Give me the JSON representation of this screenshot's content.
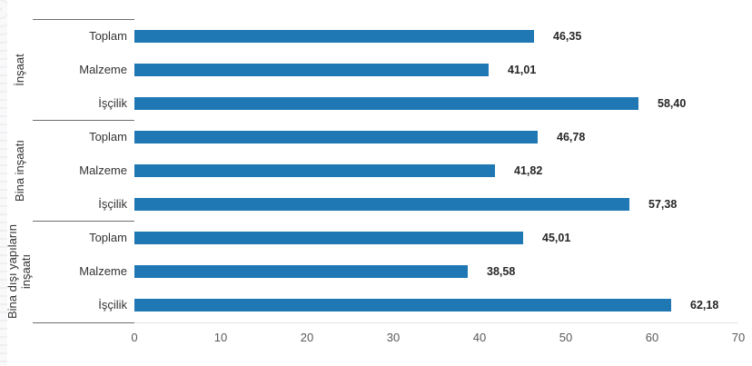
{
  "chart_data": {
    "type": "bar",
    "orientation": "horizontal",
    "title": "",
    "xlabel": "",
    "ylabel": "",
    "xlim": [
      0,
      70
    ],
    "x_ticks": [
      "0",
      "10",
      "20",
      "30",
      "40",
      "50",
      "60",
      "70"
    ],
    "x_tick_values": [
      0,
      10,
      20,
      30,
      40,
      50,
      60,
      70
    ],
    "grid": "off",
    "legend": "none",
    "bar_color": "#1f77b4",
    "value_label_format": "decimal-comma",
    "groups": [
      {
        "label": "İnşaat",
        "rows": [
          {
            "label": "Toplam",
            "value": 46.35,
            "display": "46,35"
          },
          {
            "label": "Malzeme",
            "value": 41.01,
            "display": "41,01"
          },
          {
            "label": "İşçilik",
            "value": 58.4,
            "display": "58,40"
          }
        ]
      },
      {
        "label": "Bina inşaatı",
        "rows": [
          {
            "label": "Toplam",
            "value": 46.78,
            "display": "46,78"
          },
          {
            "label": "Malzeme",
            "value": 41.82,
            "display": "41,82"
          },
          {
            "label": "İşçilik",
            "value": 57.38,
            "display": "57,38"
          }
        ]
      },
      {
        "label": "Bina dışı yapıların inşaatı",
        "rows": [
          {
            "label": "Toplam",
            "value": 45.01,
            "display": "45,01"
          },
          {
            "label": "Malzeme",
            "value": 38.58,
            "display": "38,58"
          },
          {
            "label": "İşçilik",
            "value": 62.18,
            "display": "62,18"
          }
        ]
      }
    ]
  },
  "colors": {
    "bar": "#1f77b4",
    "axis_line": "#e3e3e3",
    "separator": "#6e6e6e",
    "row_label": "#333333",
    "group_label": "#333333",
    "value_label": "#262626",
    "tick_label": "#595959"
  }
}
